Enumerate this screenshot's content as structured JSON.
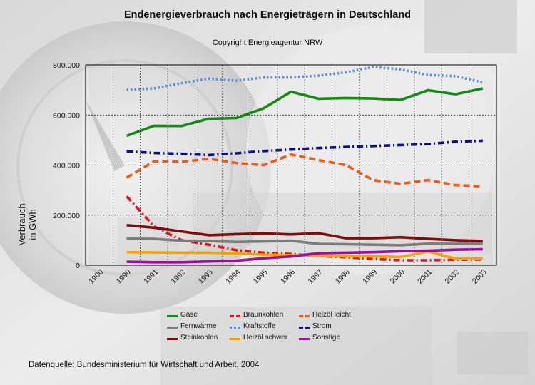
{
  "title": "Endenergieverbrauch nach Energieträgern in Deutschland",
  "subtitle": "Copyright Energieagentur NRW",
  "source": "Datenquelle: Bundesministerium für Wirtschaft und Arbeit, 2004",
  "colors": {
    "Gase": "#138a13",
    "Braunkohlen": "#e8101a",
    "Heizöl leicht": "#ef5a14",
    "Fernwärme": "#7c7c7c",
    "Kraftstoffe": "#5b8fd1",
    "Strom": "#0d0d86",
    "Steinkohlen": "#7e0e0e",
    "Heizöl schwer": "#f5a300",
    "Sonstige": "#9c0f9c"
  },
  "chart_data": {
    "type": "line",
    "title": "Endenergieverbrauch nach Energieträgern in Deutschland",
    "subtitle": "Copyright Energieagentur NRW",
    "ylabel": "Verbrauch in GWh",
    "xlabel": "",
    "x": [
      "1900",
      "1990",
      "1991",
      "1992",
      "1993",
      "1994",
      "1995",
      "1996",
      "1997",
      "1998",
      "1999",
      "2000",
      "2001",
      "2002",
      "2003"
    ],
    "ylim": [
      0,
      800000
    ],
    "yticks": [
      "0",
      "200.000",
      "400.000",
      "600.000",
      "800.000"
    ],
    "grid": true,
    "legend_position": "bottom",
    "series": [
      {
        "name": "Gase",
        "dash": "solid",
        "values": [
          null,
          517000,
          557000,
          556000,
          585000,
          588000,
          627000,
          693000,
          665000,
          668000,
          666000,
          660000,
          699000,
          683000,
          706000
        ]
      },
      {
        "name": "Braunkohlen",
        "dash": "dashdot",
        "values": [
          null,
          275000,
          155000,
          100000,
          82000,
          60000,
          50000,
          45000,
          37000,
          32000,
          25000,
          20000,
          20000,
          22000,
          23000
        ]
      },
      {
        "name": "Heizöl leicht",
        "dash": "dash",
        "values": [
          null,
          350000,
          415000,
          413000,
          425000,
          408000,
          400000,
          442000,
          420000,
          400000,
          340000,
          325000,
          340000,
          320000,
          315000
        ]
      },
      {
        "name": "Fernwärme",
        "dash": "solid",
        "values": [
          null,
          106000,
          105000,
          98000,
          97000,
          93000,
          95000,
          98000,
          85000,
          84000,
          82000,
          80000,
          86000,
          85000,
          87000
        ]
      },
      {
        "name": "Kraftstoffe",
        "dash": "dot",
        "values": [
          null,
          700000,
          706000,
          727000,
          745000,
          737000,
          750000,
          750000,
          757000,
          770000,
          792000,
          782000,
          760000,
          755000,
          730000
        ]
      },
      {
        "name": "Strom",
        "dash": "dashdot",
        "values": [
          null,
          455000,
          448000,
          445000,
          440000,
          447000,
          456000,
          462000,
          468000,
          472000,
          476000,
          480000,
          484000,
          493000,
          497000
        ]
      },
      {
        "name": "Steinkohlen",
        "dash": "solid",
        "values": [
          null,
          160000,
          150000,
          135000,
          120000,
          124000,
          127000,
          123000,
          128000,
          108000,
          108000,
          112000,
          105000,
          100000,
          97000
        ]
      },
      {
        "name": "Heizöl schwer",
        "dash": "solid",
        "values": [
          null,
          52000,
          51000,
          50000,
          50000,
          47000,
          42000,
          40000,
          39000,
          36000,
          36000,
          33000,
          55000,
          27000,
          27000
        ]
      },
      {
        "name": "Sonstige",
        "dash": "solid",
        "values": [
          null,
          14000,
          12000,
          12000,
          15000,
          18000,
          28000,
          35000,
          48000,
          50000,
          52000,
          56000,
          58000,
          62000,
          64000
        ]
      }
    ]
  }
}
